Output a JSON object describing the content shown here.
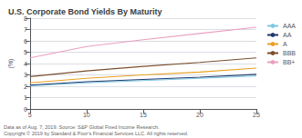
{
  "chart_data": {
    "type": "line",
    "title": "U.S. Corporate Bond Yields By Maturity",
    "ylabel": "(%)",
    "x": [
      5,
      10,
      15,
      20,
      25
    ],
    "series": [
      {
        "name": "AAA",
        "color": "#7EC8E3",
        "values": [
          2.05,
          2.3,
          2.5,
          2.7,
          2.9
        ]
      },
      {
        "name": "AA",
        "color": "#1F3A6E",
        "values": [
          2.1,
          2.4,
          2.6,
          2.8,
          3.05
        ]
      },
      {
        "name": "A",
        "color": "#E8A020",
        "values": [
          2.3,
          2.7,
          3.0,
          3.25,
          3.6
        ]
      },
      {
        "name": "BBB",
        "color": "#7B4F2E",
        "values": [
          2.85,
          3.35,
          3.75,
          4.1,
          4.5
        ]
      },
      {
        "name": "BB+",
        "color": "#E8A0BF",
        "values": [
          4.5,
          5.5,
          6.1,
          6.65,
          7.2
        ]
      }
    ],
    "xlim": [
      5,
      25
    ],
    "ylim": [
      0,
      8
    ],
    "xticks": [
      5,
      10,
      15,
      20,
      25
    ],
    "yticks": [
      0,
      1,
      2,
      3,
      4,
      5,
      6,
      7,
      8
    ],
    "grid": true,
    "legend": "right",
    "annotations": [
      "Data as of Aug. 7, 2019. Source: S&P Global Fixed Income Research.",
      "Copyright © 2019 by Standard & Poor's Financial Services LLC. All rights reserved."
    ]
  }
}
